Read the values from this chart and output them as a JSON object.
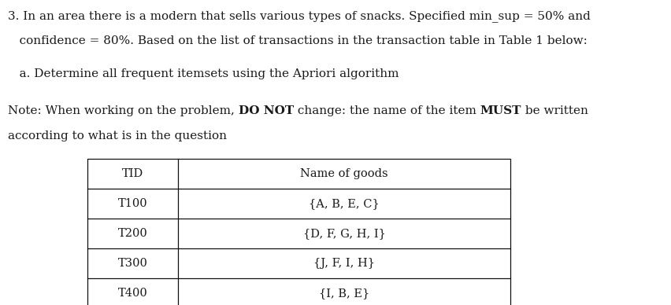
{
  "p1_l1": "3. In an area there is a modern that sells various types of snacks. Specified min_sup = 50% and",
  "p1_l2": "   confidence = 80%. Based on the list of transactions in the transaction table in Table 1 below:",
  "p2": "   a. Determine all frequent itemsets using the Apriori algorithm",
  "note_l1_pre": "Note: When working on the problem, ",
  "note_l1_bold1": "DO NOT",
  "note_l1_mid": " change: the name of the item ",
  "note_l1_bold2": "MUST",
  "note_l1_post": " be written",
  "note_l2": "according to what is in the question",
  "table_headers": [
    "TID",
    "Name of goods"
  ],
  "table_rows": [
    [
      "T100",
      "{A, B, E, C}"
    ],
    [
      "T200",
      "{D, F, G, H, I}"
    ],
    [
      "T300",
      "{J, F, I, H}"
    ],
    [
      "T400",
      "{I, B, E}"
    ]
  ],
  "bg_color": "#ffffff",
  "text_color": "#1a1a1a",
  "font_size_body": 11.0,
  "font_size_table": 10.5,
  "fig_width": 8.53,
  "fig_height": 3.88,
  "dpi": 100
}
